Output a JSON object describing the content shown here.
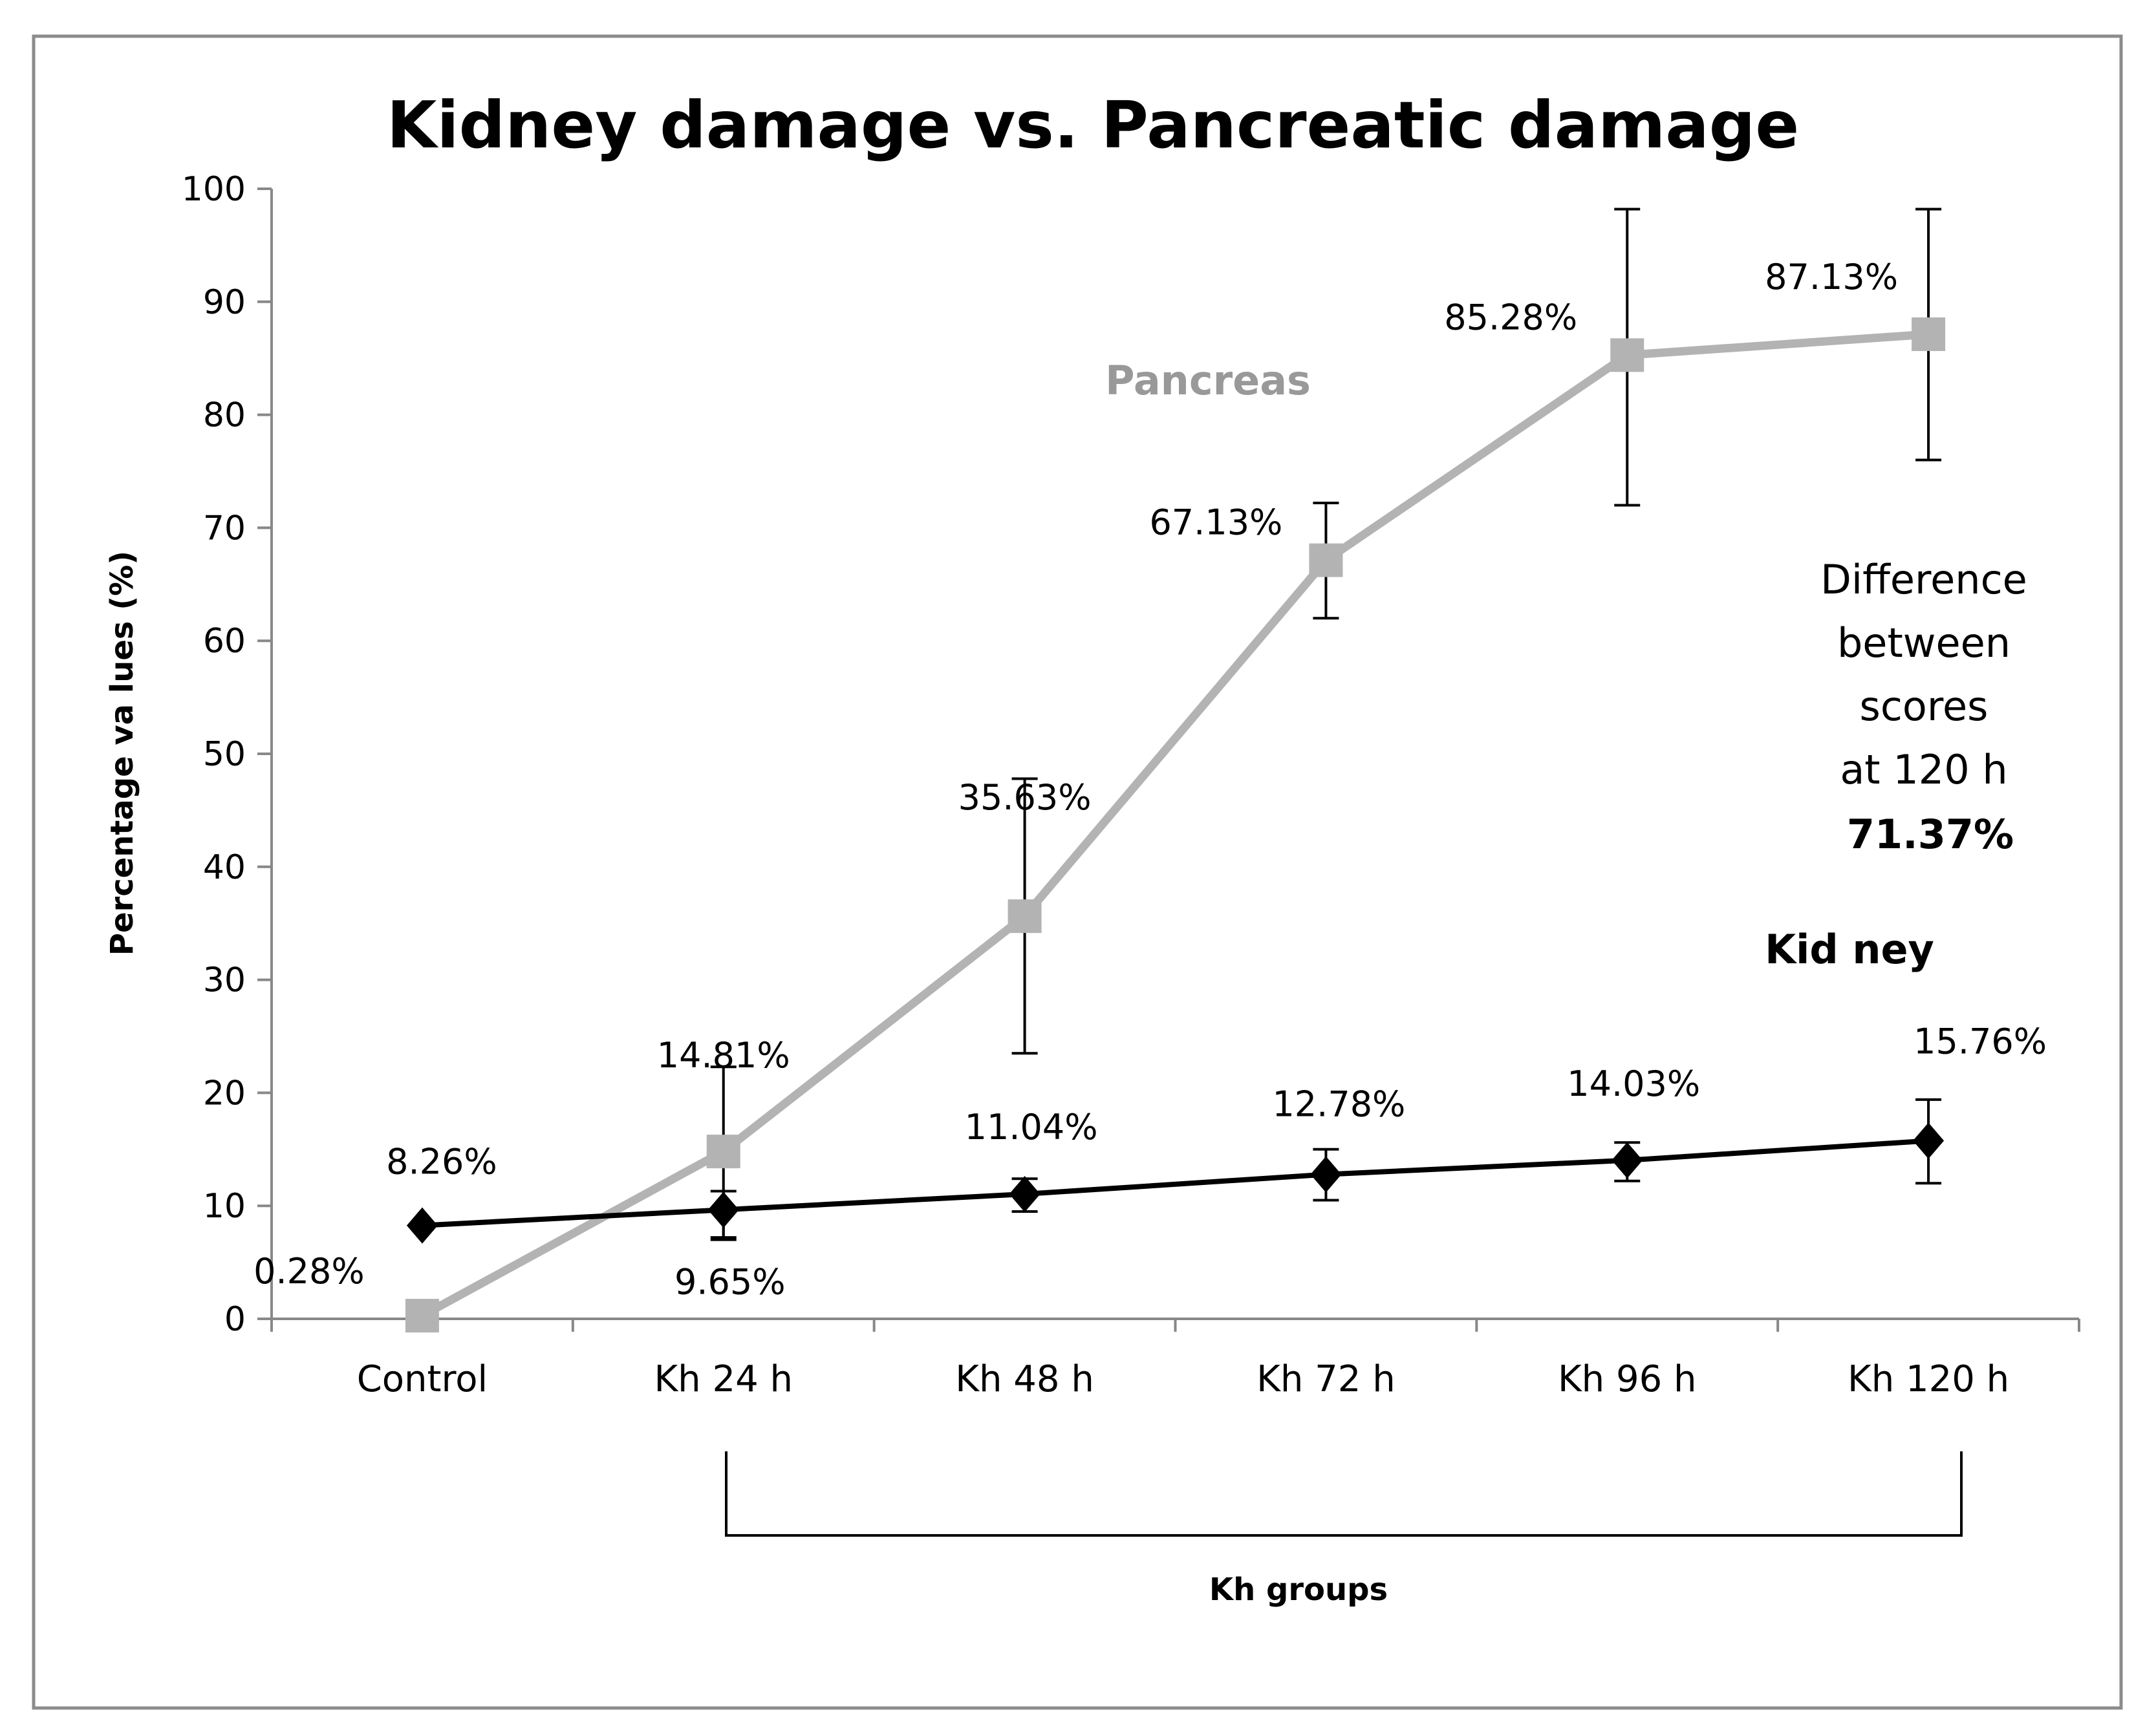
{
  "chart_data": {
    "type": "line",
    "title": "Kidney damage vs. Pancreatic damage",
    "xlabel": "Kh groups",
    "ylabel": "Percentage va lues  (%)",
    "ylim": [
      0,
      100
    ],
    "yticks": [
      0,
      10,
      20,
      30,
      40,
      50,
      60,
      70,
      80,
      90,
      100
    ],
    "categories": [
      "Control",
      "Kh 24 h",
      "Kh 48 h",
      "Kh 72 h",
      "Kh 96 h",
      "Kh 120 h"
    ],
    "series": [
      {
        "name": "Pancreas",
        "color": "#b3b3b3",
        "marker": "square",
        "values": [
          0.28,
          14.81,
          35.63,
          67.13,
          85.28,
          87.13
        ],
        "error_low": [
          null,
          7,
          23.5,
          62,
          72,
          76
        ],
        "error_high": [
          null,
          22.3,
          47.8,
          72.2,
          98.2,
          98.2
        ],
        "labels": [
          "0.28%",
          "14.81%",
          "35.63%",
          "67.13%",
          "85.28%",
          "87.13%"
        ]
      },
      {
        "name": "Kidney",
        "color": "#000000",
        "marker": "diamond",
        "values": [
          8.26,
          9.65,
          11.04,
          12.78,
          14.03,
          15.76
        ],
        "error_low": [
          null,
          7.2,
          9.5,
          10.5,
          12.2,
          12
        ],
        "error_high": [
          null,
          11.3,
          12.4,
          15,
          15.6,
          19.4
        ],
        "labels": [
          "8.26%",
          "9.65%",
          "11.04%",
          "12.78%",
          "14.03%",
          "15.76%"
        ]
      }
    ],
    "series_labels": {
      "pancreas": "Pancreas",
      "kidney": "Kid ney"
    },
    "annotation": {
      "lines": [
        "Difference",
        "between",
        "scores",
        "at 120 h"
      ],
      "value": "71.37%"
    },
    "bracket": "Kh groups"
  }
}
